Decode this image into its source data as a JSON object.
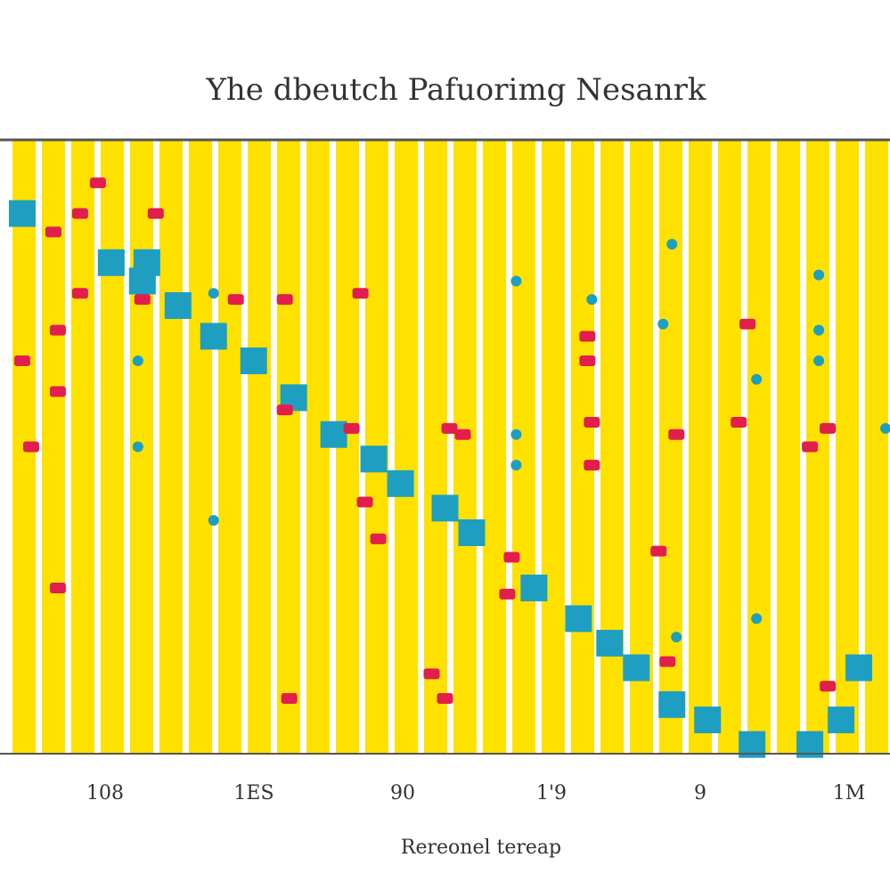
{
  "chart_data": {
    "type": "scatter",
    "title": "Yhe dbeutch Pafuorimg Nesanrk",
    "xlabel": "Rereonel tereap",
    "ylabel": "",
    "x_tick_labels": [
      "108",
      "1ES",
      "90",
      "1'9",
      "9",
      "1M"
    ],
    "xlim": [
      0,
      100
    ],
    "ylim": [
      0,
      100
    ],
    "grid": "vertical-stripes",
    "legend": "none",
    "colors": {
      "stripe": "#FFE100",
      "frame": "#555555",
      "squares": "#1E9FC1",
      "markers": "#E21E4E",
      "dots": "#1E9FC1"
    },
    "series": [
      {
        "marker": "square",
        "values": [
          {
            "x": 2.5,
            "y": 88
          },
          {
            "x": 12.5,
            "y": 80
          },
          {
            "x": 16.5,
            "y": 80
          },
          {
            "x": 16,
            "y": 77
          },
          {
            "x": 20,
            "y": 73
          },
          {
            "x": 24,
            "y": 68
          },
          {
            "x": 28.5,
            "y": 64
          },
          {
            "x": 33,
            "y": 58
          },
          {
            "x": 37.5,
            "y": 52
          },
          {
            "x": 42,
            "y": 48
          },
          {
            "x": 45,
            "y": 44
          },
          {
            "x": 50,
            "y": 40
          },
          {
            "x": 53,
            "y": 36
          },
          {
            "x": 60,
            "y": 27
          },
          {
            "x": 65,
            "y": 22
          },
          {
            "x": 68.5,
            "y": 18
          },
          {
            "x": 71.5,
            "y": 14
          },
          {
            "x": 75.5,
            "y": 8
          },
          {
            "x": 79.5,
            "y": 5.5
          },
          {
            "x": 84.5,
            "y": 1.5
          },
          {
            "x": 91,
            "y": 1.5
          },
          {
            "x": 94.5,
            "y": 5.5
          },
          {
            "x": 96.5,
            "y": 14
          }
        ]
      },
      {
        "marker": "mark",
        "values": [
          {
            "x": 11,
            "y": 93
          },
          {
            "x": 9,
            "y": 88
          },
          {
            "x": 17.5,
            "y": 88
          },
          {
            "x": 6,
            "y": 85
          },
          {
            "x": 9,
            "y": 75
          },
          {
            "x": 16,
            "y": 74
          },
          {
            "x": 26.5,
            "y": 74
          },
          {
            "x": 32,
            "y": 74
          },
          {
            "x": 40.5,
            "y": 75
          },
          {
            "x": 6.5,
            "y": 69
          },
          {
            "x": 2.5,
            "y": 64
          },
          {
            "x": 6.5,
            "y": 59
          },
          {
            "x": 3.5,
            "y": 50
          },
          {
            "x": 39.5,
            "y": 53
          },
          {
            "x": 50.5,
            "y": 53
          },
          {
            "x": 52,
            "y": 52
          },
          {
            "x": 41,
            "y": 41
          },
          {
            "x": 42.5,
            "y": 35
          },
          {
            "x": 57.5,
            "y": 32
          },
          {
            "x": 6.5,
            "y": 27
          },
          {
            "x": 57,
            "y": 26
          },
          {
            "x": 48.5,
            "y": 13
          },
          {
            "x": 32.5,
            "y": 9
          },
          {
            "x": 50,
            "y": 9
          },
          {
            "x": 66,
            "y": 64
          },
          {
            "x": 66,
            "y": 68
          },
          {
            "x": 66.5,
            "y": 54
          },
          {
            "x": 66.5,
            "y": 47
          },
          {
            "x": 74,
            "y": 33
          },
          {
            "x": 75,
            "y": 15
          },
          {
            "x": 76,
            "y": 52
          },
          {
            "x": 83,
            "y": 54
          },
          {
            "x": 84,
            "y": 70
          },
          {
            "x": 93,
            "y": 11
          },
          {
            "x": 93,
            "y": 53
          },
          {
            "x": 91,
            "y": 50
          },
          {
            "x": 32,
            "y": 56
          }
        ]
      },
      {
        "marker": "dot",
        "values": [
          {
            "x": 24,
            "y": 75
          },
          {
            "x": 58,
            "y": 77
          },
          {
            "x": 66.5,
            "y": 74
          },
          {
            "x": 75.5,
            "y": 83
          },
          {
            "x": 92,
            "y": 78
          },
          {
            "x": 74.5,
            "y": 70
          },
          {
            "x": 92,
            "y": 69
          },
          {
            "x": 92,
            "y": 64
          },
          {
            "x": 15.5,
            "y": 64
          },
          {
            "x": 15.5,
            "y": 50
          },
          {
            "x": 58,
            "y": 52
          },
          {
            "x": 58,
            "y": 47
          },
          {
            "x": 24,
            "y": 38
          },
          {
            "x": 85,
            "y": 22
          },
          {
            "x": 85,
            "y": 61
          },
          {
            "x": 76,
            "y": 19
          },
          {
            "x": 99.5,
            "y": 53
          }
        ]
      }
    ]
  }
}
